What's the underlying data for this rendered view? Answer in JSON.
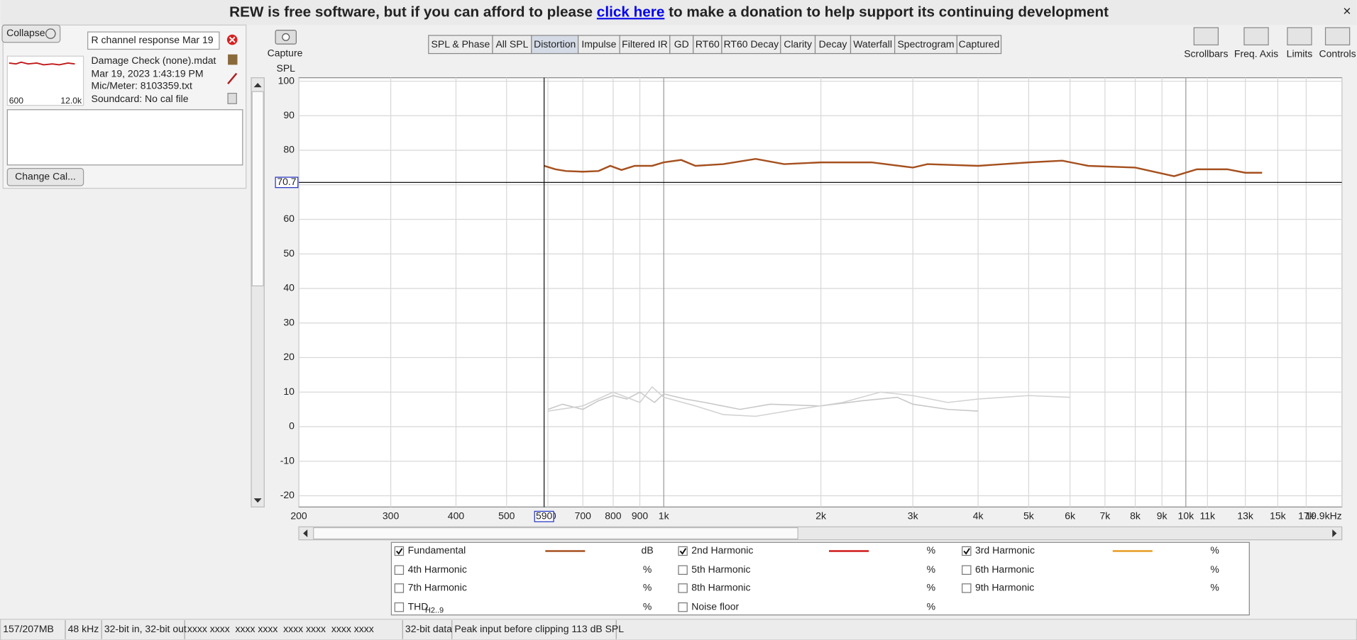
{
  "banner": {
    "before": "REW is free software, but if you can afford to please ",
    "link": "click here",
    "after": " to make a donation to help support its continuing development",
    "close": "×"
  },
  "panel": {
    "collapse": "Collapse",
    "name": "R channel response Mar 19",
    "file": "Damage Check (none).mdat",
    "date": "Mar 19, 2023 1:43:19 PM",
    "mic": "Mic/Meter: 8103359.txt",
    "soundcard": "Soundcard: No cal file",
    "thumb_low": "600",
    "thumb_high": "12.0k",
    "change_cal": "Change Cal..."
  },
  "capture": "Capture",
  "tabs": [
    "SPL & Phase",
    "All SPL",
    "Distortion",
    "Impulse",
    "Filtered IR",
    "GD",
    "RT60",
    "RT60 Decay",
    "Clarity",
    "Decay",
    "Waterfall",
    "Spectrogram",
    "Captured"
  ],
  "active_tab": 2,
  "tools": [
    "Scrollbars",
    "Freq. Axis",
    "Limits",
    "Controls"
  ],
  "graph": {
    "y_label": "SPL",
    "log_x": true,
    "xlim": [
      200,
      19900
    ],
    "ylim": [
      -23.25,
      101
    ],
    "xticks": [
      200,
      300,
      400,
      500,
      {
        "value": 600,
        "label": "600"
      },
      700,
      800,
      900,
      {
        "value": 1000,
        "label": "1k"
      },
      {
        "value": 2000,
        "label": "2k"
      },
      {
        "value": 3000,
        "label": "3k"
      },
      {
        "value": 4000,
        "label": "4k"
      },
      {
        "value": 5000,
        "label": "5k"
      },
      {
        "value": 6000,
        "label": "6k"
      },
      {
        "value": 7000,
        "label": "7k"
      },
      {
        "value": 8000,
        "label": "8k"
      },
      {
        "value": 9000,
        "label": "9k"
      },
      {
        "value": 10000,
        "label": "10k"
      },
      {
        "value": 11000,
        "label": "11k"
      },
      {
        "value": 13000,
        "label": "13k"
      },
      {
        "value": 15000,
        "label": "15k"
      },
      {
        "value": 17000,
        "label": "17k"
      },
      {
        "value": 19900,
        "label": "19.9kHz"
      }
    ],
    "faded_xticks": [
      11000,
      13000,
      15000,
      17000
    ],
    "yticks": [
      -20,
      -10,
      0,
      10,
      20,
      30,
      40,
      50,
      60,
      70,
      80,
      90,
      100
    ],
    "cursor": {
      "x": {
        "value": 590,
        "label": "590"
      },
      "y": {
        "value": 70.7,
        "label": "70.7"
      }
    },
    "series": [
      {
        "color": "#a5501e",
        "x": [
          590,
          620,
          650,
          700,
          750,
          790,
          830,
          880,
          950,
          1000,
          1080,
          1150,
          1300,
          1500,
          1700,
          2000,
          2500,
          3000,
          3200,
          4000,
          5000,
          5800,
          6500,
          8000,
          9500,
          10500,
          12000,
          13000,
          14000
        ],
        "values": [
          75.5,
          74.5,
          74,
          73.8,
          74,
          75.5,
          74.3,
          75.5,
          75.5,
          76.5,
          77.2,
          75.5,
          76,
          77.5,
          76,
          76.5,
          76.5,
          75,
          76,
          75.5,
          76.5,
          77,
          75.5,
          75,
          72.5,
          74.5,
          74.5,
          73.5,
          73.5
        ]
      },
      {
        "color": "#c8c8c8",
        "x": [
          600,
          640,
          700,
          750,
          800,
          850,
          900,
          960,
          1000,
          1100,
          1200,
          1400,
          1600,
          2000,
          2400,
          2800,
          3000,
          3500,
          4000
        ],
        "values": [
          5,
          6.5,
          5,
          7.5,
          9,
          8,
          10,
          7,
          9.5,
          8,
          7,
          5,
          6.5,
          6,
          7.5,
          8.5,
          6.5,
          5,
          4.5
        ]
      },
      {
        "color": "#d2d2d2",
        "x": [
          600,
          700,
          800,
          900,
          950,
          1000,
          1150,
          1300,
          1500,
          1800,
          2200,
          2600,
          3000,
          3500,
          4000,
          5000,
          6000
        ],
        "values": [
          4.5,
          6,
          10,
          7,
          11.5,
          8.5,
          6,
          3.5,
          3,
          5,
          7,
          10,
          9,
          7,
          8,
          9,
          8.5
        ]
      }
    ]
  },
  "legend": [
    {
      "label": "Fundamental",
      "unit": "dB",
      "checked": true,
      "color": "#a5501e",
      "line": true
    },
    {
      "label": "2nd Harmonic",
      "unit": "%",
      "checked": true,
      "color": "#d01818",
      "line": true
    },
    {
      "label": "3rd Harmonic",
      "unit": "%",
      "checked": true,
      "color": "#e89c20",
      "line": true
    },
    {
      "label": "4th Harmonic",
      "unit": "%",
      "checked": false,
      "color": "#d8b400"
    },
    {
      "label": "5th Harmonic",
      "unit": "%",
      "checked": false,
      "color": "#2a8a2a"
    },
    {
      "label": "6th Harmonic",
      "unit": "%",
      "checked": false,
      "color": "#3a5ea8"
    },
    {
      "label": "7th Harmonic",
      "unit": "%",
      "checked": false,
      "color": "#c030c0"
    },
    {
      "label": "8th Harmonic",
      "unit": "%",
      "checked": false,
      "color": "#707070"
    },
    {
      "label": "9th Harmonic",
      "unit": "%",
      "checked": false,
      "color": "#1a8aa8"
    },
    {
      "label": "THD",
      "sub": "H2..9",
      "unit": "%",
      "checked": false,
      "color": "#444444"
    },
    {
      "label": "Noise floor",
      "unit": "%",
      "checked": false,
      "color": "#8b1a1a"
    }
  ],
  "status": [
    {
      "text": "157/207MB"
    },
    {
      "text": "48 kHz"
    },
    {
      "text": "32-bit in, 32-bit out"
    },
    {
      "text": "xxxx xxxx  xxxx xxxx  xxxx xxxx  xxxx xxxx",
      "color": "#2a9a2a"
    },
    {
      "text": "32-bit data"
    },
    {
      "text": "Peak input before clipping 113 dB SPL"
    }
  ]
}
